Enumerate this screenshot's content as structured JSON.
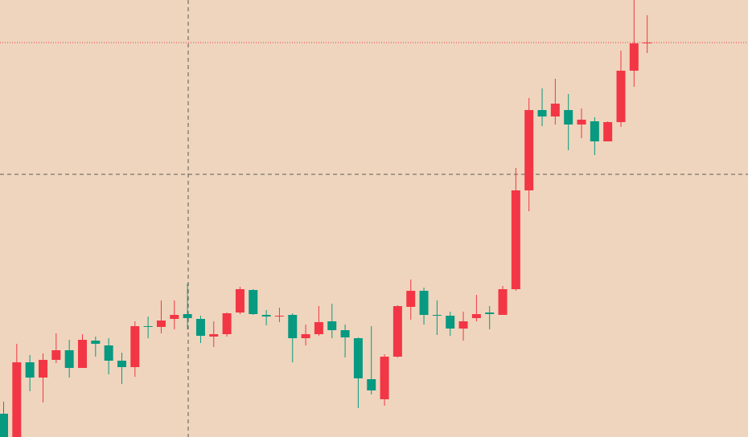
{
  "chart_data": {
    "type": "candlestick",
    "open": [
      29,
      0,
      93,
      74,
      96,
      108,
      86,
      120,
      114,
      95,
      87,
      138,
      137,
      147,
      153,
      147,
      125,
      128,
      155,
      183,
      152,
      150,
      152,
      123,
      128,
      144,
      133,
      123,
      72,
      47,
      100,
      162,
      182,
      152,
      151,
      135,
      148,
      155,
      152,
      184,
      307,
      407,
      399,
      407,
      389,
      393,
      368,
      392,
      456,
      490
    ],
    "high": [
      44,
      116,
      102,
      104,
      129,
      121,
      128,
      125,
      123,
      105,
      144,
      150,
      170,
      170,
      191,
      151,
      144,
      155,
      187,
      184,
      158,
      161,
      154,
      140,
      163,
      166,
      140,
      124,
      138,
      103,
      164,
      196,
      186,
      170,
      156,
      156,
      177,
      163,
      188,
      335,
      422,
      434,
      446,
      427,
      409,
      398,
      393,
      481,
      544,
      525
    ],
    "low": [
      0,
      0,
      57,
      43,
      92,
      74,
      86,
      100,
      78,
      66,
      75,
      123,
      129,
      134,
      134,
      117,
      112,
      125,
      153,
      152,
      139,
      143,
      93,
      114,
      126,
      123,
      99,
      36,
      53,
      39,
      99,
      146,
      140,
      127,
      126,
      120,
      144,
      134,
      152,
      182,
      281,
      387,
      389,
      357,
      372,
      351,
      368,
      386,
      436,
      478
    ],
    "close": [
      0,
      93,
      74,
      96,
      108,
      86,
      121,
      116,
      95,
      87,
      138,
      137,
      145,
      152,
      148,
      126,
      128,
      154,
      184,
      153,
      150,
      151,
      123,
      128,
      143,
      133,
      124,
      73,
      58,
      100,
      163,
      182,
      152,
      151,
      135,
      144,
      153,
      153,
      184,
      307,
      407,
      399,
      415,
      389,
      395,
      368,
      392,
      456,
      490,
      491
    ],
    "up_color": "#f23645",
    "down_color": "#089981",
    "ylim": [
      0,
      544
    ],
    "last_price_line": true
  }
}
